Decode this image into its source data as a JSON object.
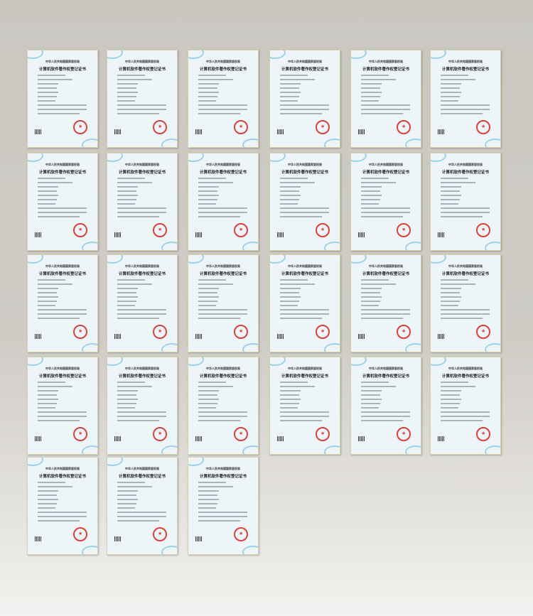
{
  "certificate": {
    "issuer": "中华人民共和国国家版权局",
    "title": "计算机软件著作权登记证书",
    "seal_color": "#d9423b",
    "count": 27
  },
  "grid": {
    "rows": [
      6,
      6,
      6,
      6,
      3
    ]
  }
}
